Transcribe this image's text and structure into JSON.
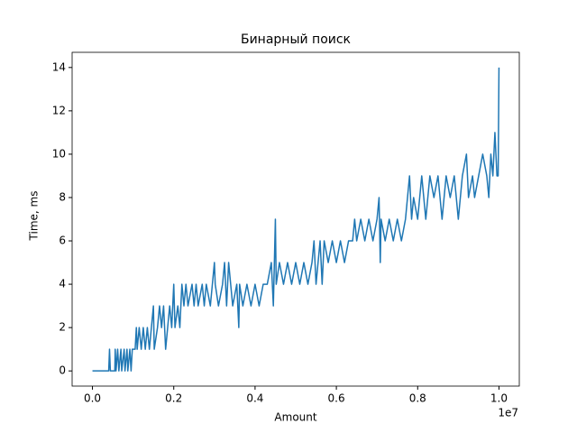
{
  "chart_data": {
    "type": "line",
    "title": "Бинарный поиск",
    "xlabel": "Amount",
    "ylabel": "Time, ms",
    "x_offset_label": "1e7",
    "color": "#1f77b4",
    "xlim": [
      -500000,
      10500000
    ],
    "xticks": [
      {
        "value": 0,
        "label": "0.0"
      },
      {
        "value": 2000000,
        "label": "0.2"
      },
      {
        "value": 4000000,
        "label": "0.4"
      },
      {
        "value": 6000000,
        "label": "0.6"
      },
      {
        "value": 8000000,
        "label": "0.8"
      },
      {
        "value": 10000000,
        "label": "1.0"
      }
    ],
    "ylim": [
      -0.7,
      14.7
    ],
    "yticks": [
      0,
      2,
      4,
      6,
      8,
      10,
      12,
      14
    ],
    "x": [
      0,
      400000,
      420000,
      440000,
      550000,
      560000,
      580000,
      620000,
      650000,
      700000,
      720000,
      780000,
      800000,
      850000,
      870000,
      920000,
      950000,
      980000,
      1050000,
      1080000,
      1100000,
      1150000,
      1200000,
      1250000,
      1300000,
      1350000,
      1400000,
      1450000,
      1500000,
      1520000,
      1600000,
      1650000,
      1700000,
      1750000,
      1800000,
      1850000,
      1900000,
      1950000,
      2000000,
      2030000,
      2100000,
      2150000,
      2200000,
      2250000,
      2300000,
      2350000,
      2450000,
      2500000,
      2550000,
      2600000,
      2700000,
      2750000,
      2800000,
      2900000,
      3000000,
      3020000,
      3100000,
      3200000,
      3250000,
      3300000,
      3350000,
      3400000,
      3450000,
      3550000,
      3600000,
      3620000,
      3700000,
      3800000,
      3900000,
      4000000,
      4100000,
      4200000,
      4300000,
      4400000,
      4450000,
      4500000,
      4520000,
      4600000,
      4700000,
      4800000,
      4900000,
      5000000,
      5100000,
      5200000,
      5300000,
      5400000,
      5450000,
      5500000,
      5600000,
      5650000,
      5700000,
      5800000,
      5900000,
      6000000,
      6100000,
      6200000,
      6300000,
      6400000,
      6450000,
      6500000,
      6600000,
      6700000,
      6800000,
      6900000,
      7000000,
      7050000,
      7080000,
      7100000,
      7200000,
      7300000,
      7400000,
      7500000,
      7600000,
      7700000,
      7800000,
      7850000,
      7900000,
      8000000,
      8100000,
      8200000,
      8300000,
      8400000,
      8500000,
      8600000,
      8700000,
      8800000,
      8900000,
      9000000,
      9100000,
      9200000,
      9250000,
      9350000,
      9400000,
      9500000,
      9600000,
      9700000,
      9750000,
      9800000,
      9850000,
      9900000,
      9950000,
      9980000,
      10000000
    ],
    "values": [
      0,
      0,
      1,
      0,
      0,
      1,
      0,
      1,
      0,
      1,
      0,
      1,
      0,
      1,
      0,
      1,
      0,
      1,
      1,
      2,
      1,
      2,
      1,
      2,
      1,
      2,
      1,
      2,
      3,
      1,
      2,
      3,
      2,
      3,
      1,
      2,
      3,
      2,
      4,
      2,
      3,
      2,
      4,
      3,
      4,
      3,
      4,
      3,
      4,
      3,
      4,
      3,
      4,
      3,
      5,
      4,
      3,
      4,
      5,
      3,
      5,
      4,
      3,
      4,
      2,
      4,
      3,
      4,
      3,
      4,
      3,
      4,
      4,
      5,
      3,
      7,
      4,
      5,
      4,
      5,
      4,
      5,
      4,
      5,
      4,
      5,
      6,
      4,
      6,
      4,
      6,
      5,
      6,
      5,
      6,
      5,
      6,
      6,
      7,
      6,
      7,
      6,
      7,
      6,
      7,
      8,
      5,
      7,
      6,
      7,
      6,
      7,
      6,
      7,
      9,
      7,
      8,
      7,
      9,
      7,
      9,
      8,
      9,
      7,
      9,
      8,
      9,
      7,
      9,
      10,
      8,
      9,
      8,
      9,
      10,
      9,
      8,
      10,
      9,
      11,
      9,
      9,
      14
    ]
  }
}
